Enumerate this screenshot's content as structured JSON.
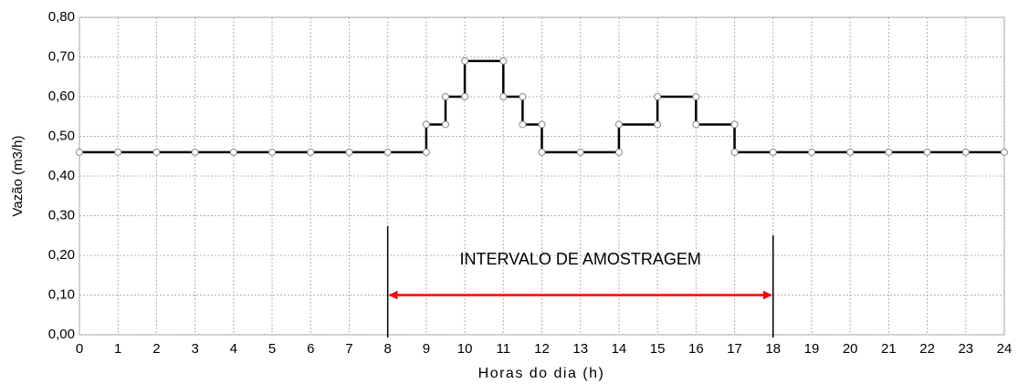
{
  "chart_data": {
    "type": "line",
    "xlabel": "Horas do dia (h)",
    "ylabel": "Vazão (m3/h)",
    "x": [
      0,
      1,
      2,
      3,
      4,
      5,
      6,
      7,
      8,
      9,
      9,
      9.5,
      9.5,
      10,
      10,
      11,
      11,
      11.5,
      11.5,
      12,
      12,
      13,
      14,
      14,
      15,
      15,
      16,
      16,
      17,
      17,
      18,
      19,
      20,
      21,
      22,
      23,
      24
    ],
    "values": [
      0.46,
      0.46,
      0.46,
      0.46,
      0.46,
      0.46,
      0.46,
      0.46,
      0.46,
      0.46,
      0.53,
      0.53,
      0.6,
      0.6,
      0.69,
      0.69,
      0.6,
      0.6,
      0.53,
      0.53,
      0.46,
      0.46,
      0.46,
      0.53,
      0.53,
      0.6,
      0.6,
      0.53,
      0.53,
      0.46,
      0.46,
      0.46,
      0.46,
      0.46,
      0.46,
      0.46,
      0.46
    ],
    "color": "#000000",
    "xlim": [
      0,
      24
    ],
    "xticks": [
      0,
      1,
      2,
      3,
      4,
      5,
      6,
      7,
      8,
      9,
      10,
      11,
      12,
      13,
      14,
      15,
      16,
      17,
      18,
      19,
      20,
      21,
      22,
      23,
      24
    ],
    "ylim": [
      0,
      0.8
    ],
    "yticks": [
      {
        "value": 0,
        "label": "0,00"
      },
      {
        "value": 0.1,
        "label": "0,10"
      },
      {
        "value": 0.2,
        "label": "0,20"
      },
      {
        "value": 0.3,
        "label": "0,30"
      },
      {
        "value": 0.4,
        "label": "0,40"
      },
      {
        "value": 0.5,
        "label": "0,50"
      },
      {
        "value": 0.6,
        "label": "0,60"
      },
      {
        "value": 0.7,
        "label": "0,70"
      },
      {
        "value": 0.8,
        "label": "0,80"
      }
    ],
    "grid": true,
    "interval": {
      "label": "INTERVALO DE AMOSTRAGEM",
      "start": 8,
      "end": 18,
      "y": 0.1,
      "color": "#ff0000"
    }
  }
}
